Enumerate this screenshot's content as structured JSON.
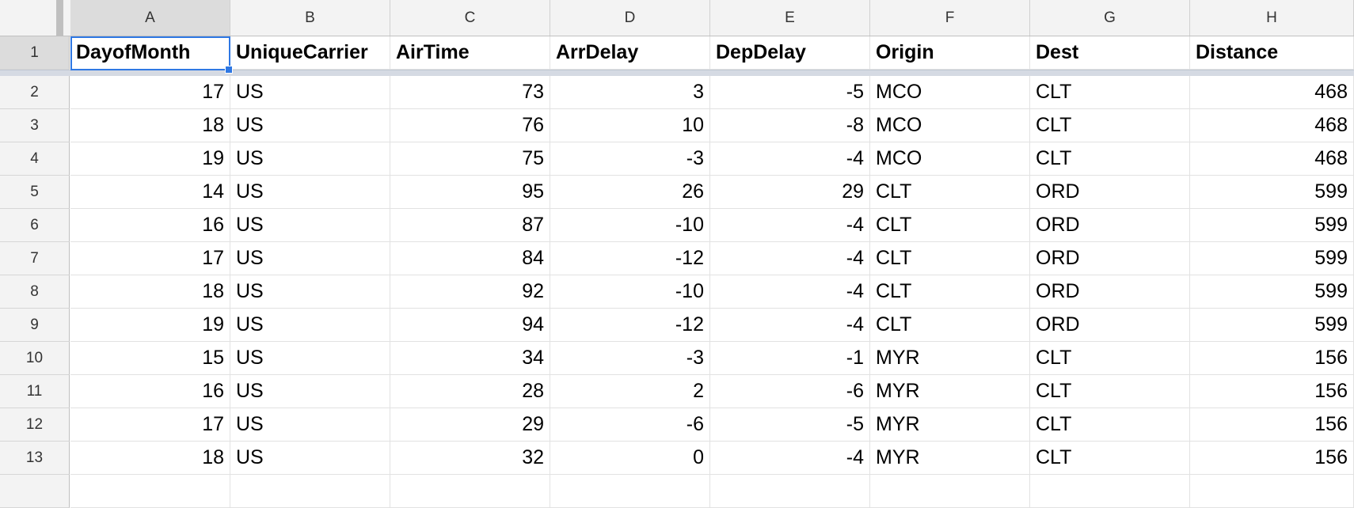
{
  "columns": [
    "A",
    "B",
    "C",
    "D",
    "E",
    "F",
    "G",
    "H"
  ],
  "header_row_number": "1",
  "headers": [
    "DayofMonth",
    "UniqueCarrier",
    "AirTime",
    "ArrDelay",
    "DepDelay",
    "Origin",
    "Dest",
    "Distance"
  ],
  "rows": [
    {
      "n": "2",
      "c": [
        "17",
        "US",
        "73",
        "3",
        "-5",
        "MCO",
        "CLT",
        "468"
      ]
    },
    {
      "n": "3",
      "c": [
        "18",
        "US",
        "76",
        "10",
        "-8",
        "MCO",
        "CLT",
        "468"
      ]
    },
    {
      "n": "4",
      "c": [
        "19",
        "US",
        "75",
        "-3",
        "-4",
        "MCO",
        "CLT",
        "468"
      ]
    },
    {
      "n": "5",
      "c": [
        "14",
        "US",
        "95",
        "26",
        "29",
        "CLT",
        "ORD",
        "599"
      ]
    },
    {
      "n": "6",
      "c": [
        "16",
        "US",
        "87",
        "-10",
        "-4",
        "CLT",
        "ORD",
        "599"
      ]
    },
    {
      "n": "7",
      "c": [
        "17",
        "US",
        "84",
        "-12",
        "-4",
        "CLT",
        "ORD",
        "599"
      ]
    },
    {
      "n": "8",
      "c": [
        "18",
        "US",
        "92",
        "-10",
        "-4",
        "CLT",
        "ORD",
        "599"
      ]
    },
    {
      "n": "9",
      "c": [
        "19",
        "US",
        "94",
        "-12",
        "-4",
        "CLT",
        "ORD",
        "599"
      ]
    },
    {
      "n": "10",
      "c": [
        "15",
        "US",
        "34",
        "-3",
        "-1",
        "MYR",
        "CLT",
        "156"
      ]
    },
    {
      "n": "11",
      "c": [
        "16",
        "US",
        "28",
        "2",
        "-6",
        "MYR",
        "CLT",
        "156"
      ]
    },
    {
      "n": "12",
      "c": [
        "17",
        "US",
        "29",
        "-6",
        "-5",
        "MYR",
        "CLT",
        "156"
      ]
    },
    {
      "n": "13",
      "c": [
        "18",
        "US",
        "32",
        "0",
        "-4",
        "MYR",
        "CLT",
        "156"
      ]
    }
  ],
  "column_align": [
    "right",
    "left",
    "right",
    "right",
    "right",
    "left",
    "left",
    "right"
  ],
  "selected_cell": "A1",
  "colors": {
    "selection": "#2f78e3",
    "header_bg": "#f3f3f3",
    "active_header_bg": "#dcdcdc"
  }
}
